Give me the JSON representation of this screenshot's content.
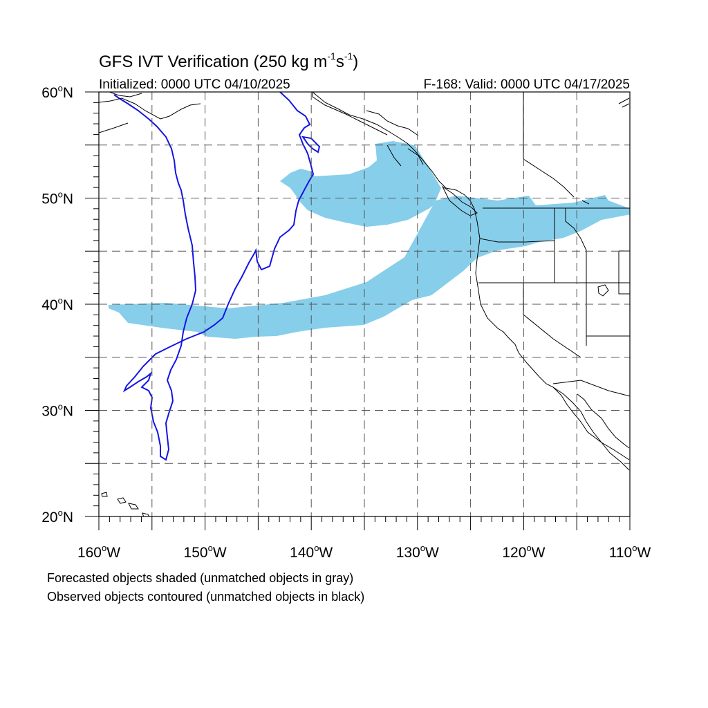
{
  "title": {
    "main": "GFS IVT Verification (250 kg m",
    "exp1": "-1",
    "mid": "s",
    "exp2": "-1",
    "end": ")"
  },
  "initialized": "Initialized: 0000 UTC 04/10/2025",
  "valid": "F-168: Valid: 0000 UTC 04/17/2025",
  "map": {
    "lon_range": [
      -160,
      -110
    ],
    "lat_range": [
      20,
      60
    ],
    "lat_labels": [
      {
        "lat": 60,
        "text": "60",
        "suffix": "N"
      },
      {
        "lat": 50,
        "text": "50",
        "suffix": "N"
      },
      {
        "lat": 40,
        "text": "40",
        "suffix": "N"
      },
      {
        "lat": 30,
        "text": "30",
        "suffix": "N"
      },
      {
        "lat": 20,
        "text": "20",
        "suffix": "N"
      }
    ],
    "lon_labels": [
      {
        "lon": -160,
        "text": "160",
        "suffix": "W"
      },
      {
        "lon": -150,
        "text": "150",
        "suffix": "W"
      },
      {
        "lon": -140,
        "text": "140",
        "suffix": "W"
      },
      {
        "lon": -130,
        "text": "130",
        "suffix": "W"
      },
      {
        "lon": -120,
        "text": "120",
        "suffix": "W"
      },
      {
        "lon": -110,
        "text": "110",
        "suffix": "W"
      }
    ],
    "degree_symbol": "o",
    "grid_lats": [
      25,
      30,
      35,
      40,
      45,
      50,
      55
    ],
    "grid_lons": [
      -155,
      -150,
      -145,
      -140,
      -135,
      -130,
      -125,
      -120,
      -115
    ],
    "forecast_color": "#87ceeb",
    "observed_color": "#1414e6",
    "coast_color": "#000000"
  },
  "footnote1": "Forecasted objects shaded (unmatched objects in gray)",
  "footnote2": "Observed objects contoured (unmatched objects in black)"
}
